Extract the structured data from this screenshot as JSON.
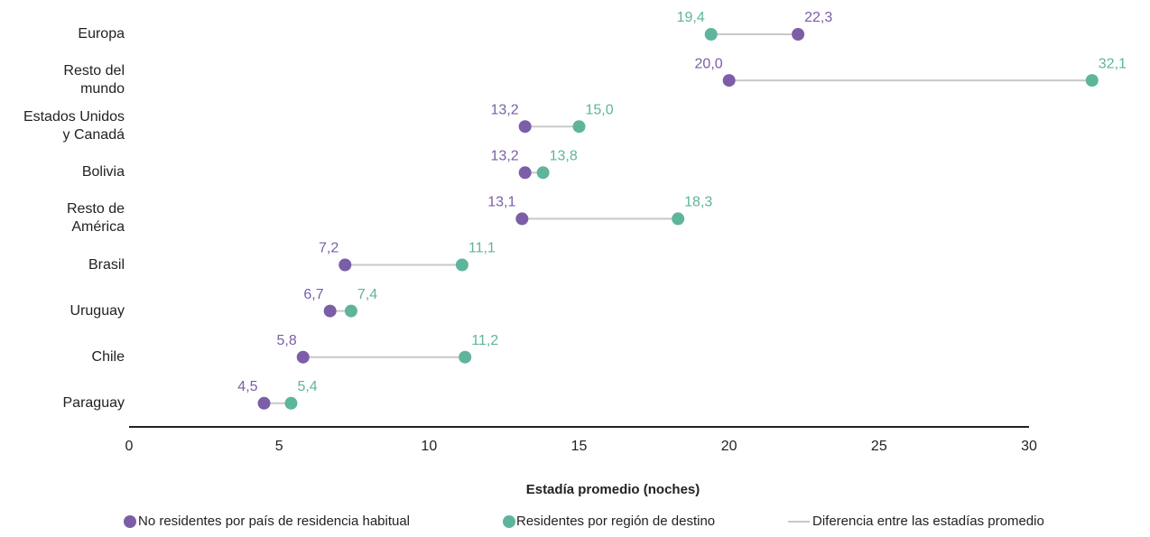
{
  "chart_data": {
    "type": "dumbbell",
    "x_label": "Estadía promedio (noches)",
    "categories": [
      "Europa",
      "Resto del\nmundo",
      "Estados Unidos\ny Canadá",
      "Bolivia",
      "Resto de\nAmérica",
      "Brasil",
      "Uruguay",
      "Chile",
      "Paraguay"
    ],
    "series": [
      {
        "name": "No residentes por país de residencia habitual",
        "color": "#7b5ea7",
        "values": [
          22.3,
          20.0,
          13.2,
          13.2,
          13.1,
          7.2,
          6.7,
          5.8,
          4.5
        ],
        "value_labels": [
          "22,3",
          "20,0",
          "13,2",
          "13,2",
          "13,1",
          "7,2",
          "6,7",
          "5,8",
          "4,5"
        ]
      },
      {
        "name": "Residentes por región de destino",
        "color": "#5fb49c",
        "values": [
          19.4,
          32.1,
          15.0,
          13.8,
          18.3,
          11.1,
          7.4,
          11.2,
          5.4
        ],
        "value_labels": [
          "19,4",
          "32,1",
          "15,0",
          "13,8",
          "18,3",
          "11,1",
          "7,4",
          "11,2",
          "5,4"
        ]
      }
    ],
    "connector": {
      "name": "Diferencia entre las estadías promedio",
      "color": "#c8c8c8"
    },
    "xlim": [
      0,
      30
    ],
    "xticks": [
      0,
      5,
      10,
      15,
      20,
      25,
      30
    ],
    "grid": false
  }
}
